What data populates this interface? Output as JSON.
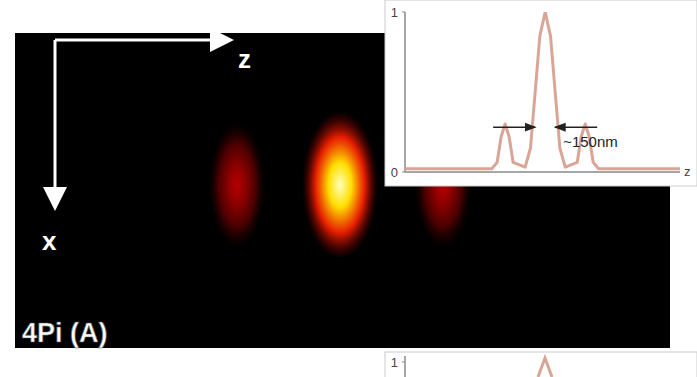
{
  "panel": {
    "label": "4Pi (A)",
    "axis_z": "z",
    "axis_x": "x"
  },
  "psf": {
    "lobes": [
      {
        "z": -300,
        "intensity": 0.3
      },
      {
        "z": 0,
        "intensity": 1
      },
      {
        "z": 300,
        "intensity": 0.3
      }
    ]
  },
  "chart_data": {
    "type": "line",
    "x": [
      -1050,
      -400,
      -360,
      -330,
      -300,
      -270,
      -240,
      -150,
      -110,
      -75,
      -40,
      0,
      40,
      75,
      110,
      150,
      240,
      270,
      300,
      330,
      360,
      400,
      1010
    ],
    "values": [
      0.02,
      0.02,
      0.06,
      0.22,
      0.3,
      0.22,
      0.06,
      0.03,
      0.15,
      0.5,
      0.85,
      1,
      0.85,
      0.5,
      0.15,
      0.03,
      0.06,
      0.22,
      0.3,
      0.22,
      0.06,
      0.02,
      0.02
    ],
    "color": "#d9a596",
    "xlabel": "z",
    "xlim": [
      -1050,
      1010
    ],
    "ylim": [
      0,
      1
    ],
    "yticks": [
      0,
      1
    ],
    "tick_labels": "y",
    "annotations": [
      {
        "text": "~150nm",
        "from": -75,
        "to": 75,
        "y": 0.28
      }
    ]
  },
  "second_inset": {
    "yticks": [
      1
    ]
  }
}
